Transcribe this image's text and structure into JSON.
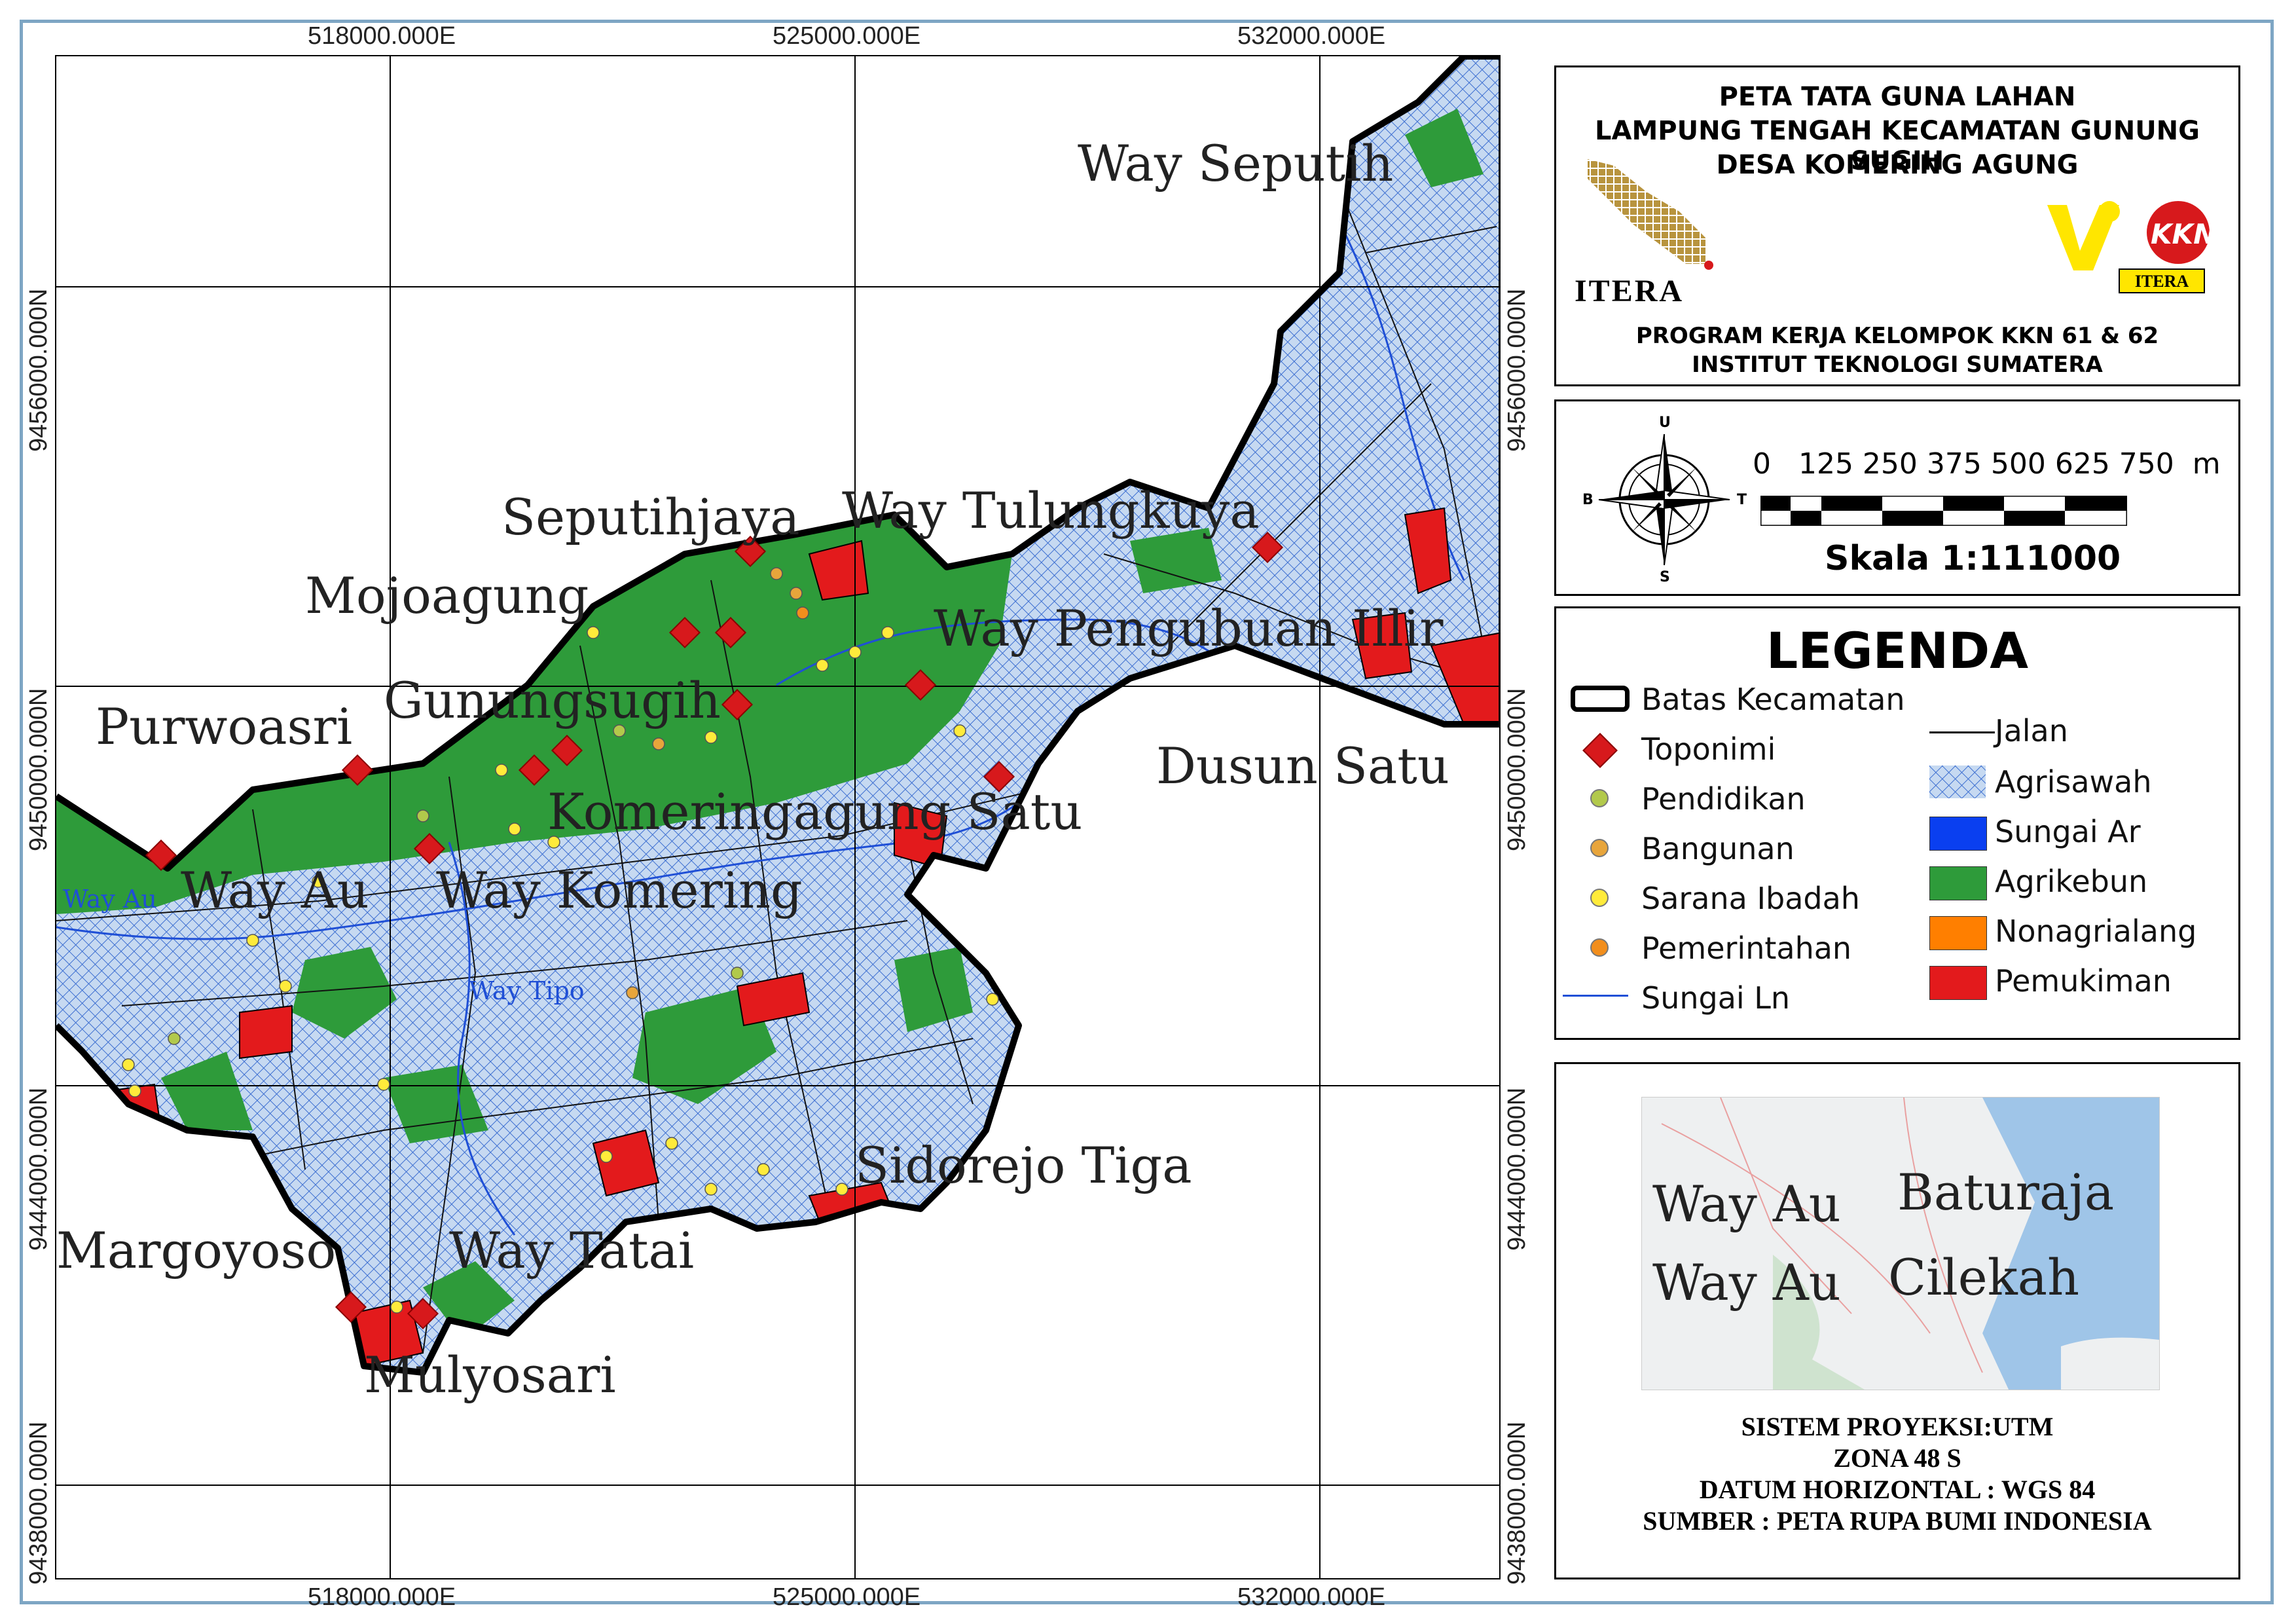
{
  "map": {
    "grid_labels": {
      "x_top": [
        "518000.000E",
        "525000.000E",
        "532000.000E"
      ],
      "x_bottom": [
        "518000.000E",
        "525000.000E",
        "532000.000E"
      ],
      "y_left": [
        "9456000.000N",
        "9450000.000N",
        "9444000.000N",
        "9438000.000N"
      ],
      "y_right": [
        "9456000.000N",
        "9450000.000N",
        "9444000.000N",
        "9438000.000N"
      ]
    },
    "place_labels": {
      "way_seputih": "Way Seputih",
      "seputihjaya": "Seputihjaya",
      "way_tulung": "Way Tulungkuya",
      "mojoagung": "Mojoagung",
      "way_pengubuan": "Way Pengubuan Illir",
      "purwoasri": "Purwoasri",
      "gunungsugih": "Gunungsugih",
      "dusun_satu": "Dusun Satu",
      "komering": "Komeringagung Satu",
      "way_au_small": "Way Au",
      "way_au": "Way Au",
      "way_komering": "Way Komering",
      "way_tipo": "Way Tipo",
      "sidorejo": "Sidorejo Tiga",
      "margoyoso": "Margoyoso",
      "way_tatai": "Way Tatai",
      "mulyosari": "Mulyosari"
    },
    "colors": {
      "agrisawah": "#c6d9f1",
      "agrikebun": "#2e9b3a",
      "pemukiman": "#e31a1c",
      "sungai": "#1f4fd6",
      "toponimi": "#d7191c"
    }
  },
  "header": {
    "title_lines": [
      "PETA TATA GUNA LAHAN",
      "LAMPUNG TENGAH KECAMATAN GUNUNG SUGIH",
      "DESA KOMERING AGUNG"
    ],
    "logo_left_text": "ITERA",
    "logo_right_text": "KKN",
    "logo_right_sub": "ITERA",
    "program_lines": [
      "PROGRAM KERJA KELOMPOK KKN 61 & 62",
      "INSTITUT TEKNOLOGI SUMATERA"
    ]
  },
  "scale": {
    "compass": {
      "n": "U",
      "s": "S",
      "w": "B",
      "e": "T"
    },
    "ticks": "0   125 250 375 500 625 750  m",
    "label": "Skala 1:111000"
  },
  "legend": {
    "title": "LEGENDA",
    "left_items": [
      "Batas Kecamatan",
      "Toponimi",
      "Pendidikan",
      "Bangunan",
      "Sarana Ibadah",
      "Pemerintahan",
      "Sungai Ln"
    ],
    "right_items": [
      "Jalan",
      "Agrisawah",
      "Sungai Ar",
      "Agrikebun",
      "Nonagrialang",
      "Pemukiman"
    ]
  },
  "inset": {
    "labels": {
      "way_au_1": "Way Au",
      "baturaja": "Baturaja",
      "way_au_2": "Way Au",
      "cilekah": "Cilekah"
    }
  },
  "footer": {
    "lines": [
      "SISTEM PROYEKSI:UTM",
      "ZONA 48 S",
      "DATUM HORIZONTAL : WGS 84",
      "SUMBER : PETA RUPA BUMI INDONESIA"
    ]
  }
}
